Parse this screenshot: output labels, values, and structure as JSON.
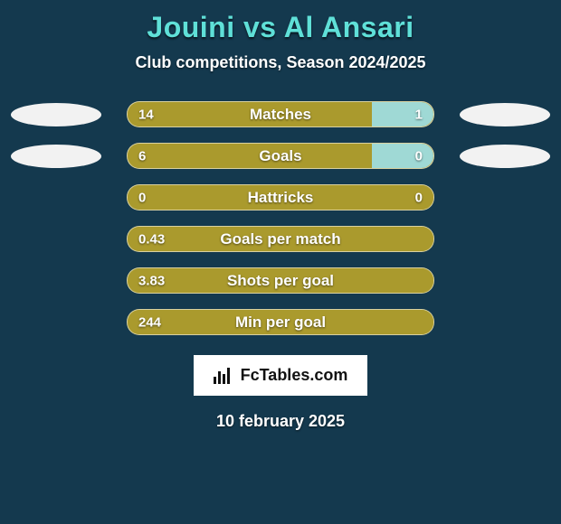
{
  "background_color": "#14394e",
  "title_color": "#5fe0d8",
  "subtitle_color": "#ffffff",
  "date_color": "#ffffff",
  "halo_color": "#f2f2f2",
  "player_left": "Jouini",
  "player_right": "Al Ansari",
  "title_joiner": " vs ",
  "subtitle": "Club competitions, Season 2024/2025",
  "date": "10 february 2025",
  "attribution": "FcTables.com",
  "left_fill_color": "#aa9a2d",
  "right_fill_color": "#9fd9d5",
  "bar_neutral_color": "#aa9a2d",
  "rows": [
    {
      "label": "Matches",
      "left": "14",
      "right": "1",
      "left_pct": 80,
      "right_pct": 20,
      "show_halos": true
    },
    {
      "label": "Goals",
      "left": "6",
      "right": "0",
      "left_pct": 80,
      "right_pct": 20,
      "show_halos": true
    },
    {
      "label": "Hattricks",
      "left": "0",
      "right": "0",
      "left_pct": 100,
      "right_pct": 0,
      "show_halos": false
    },
    {
      "label": "Goals per match",
      "left": "0.43",
      "right": "",
      "left_pct": 100,
      "right_pct": 0,
      "show_halos": false
    },
    {
      "label": "Shots per goal",
      "left": "3.83",
      "right": "",
      "left_pct": 100,
      "right_pct": 0,
      "show_halos": false
    },
    {
      "label": "Min per goal",
      "left": "244",
      "right": "",
      "left_pct": 100,
      "right_pct": 0,
      "show_halos": false
    }
  ]
}
